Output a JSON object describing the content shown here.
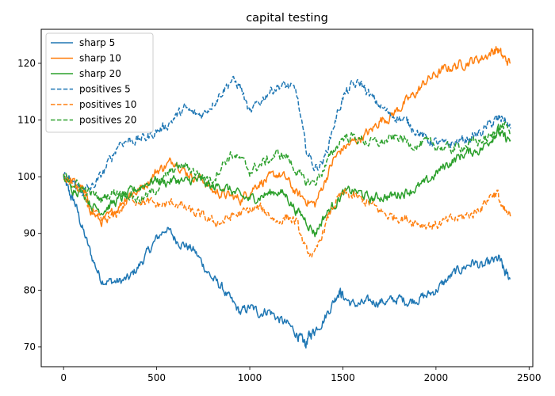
{
  "chart_data": {
    "type": "line",
    "title": "capital testing",
    "xlabel": "",
    "ylabel": "",
    "xlim": [
      -120,
      2520
    ],
    "ylim": [
      66.5,
      126.0
    ],
    "xticks": [
      0,
      500,
      1000,
      1500,
      2000,
      2500
    ],
    "yticks": [
      70,
      80,
      90,
      100,
      110,
      120
    ],
    "grid": false,
    "legend_position": "top-left",
    "series": [
      {
        "name": "sharp 5",
        "color": "#1f77b4",
        "dash": "solid",
        "points": [
          [
            0,
            100
          ],
          [
            30,
            97
          ],
          [
            60,
            95.5
          ],
          [
            100,
            91
          ],
          [
            150,
            86
          ],
          [
            200,
            82
          ],
          [
            250,
            81.5
          ],
          [
            300,
            81.5
          ],
          [
            350,
            82
          ],
          [
            400,
            84
          ],
          [
            450,
            86.5
          ],
          [
            500,
            89
          ],
          [
            550,
            91
          ],
          [
            600,
            89
          ],
          [
            650,
            88
          ],
          [
            700,
            87
          ],
          [
            750,
            84.5
          ],
          [
            800,
            82
          ],
          [
            850,
            80.5
          ],
          [
            900,
            78
          ],
          [
            950,
            76
          ],
          [
            1000,
            77
          ],
          [
            1050,
            76
          ],
          [
            1100,
            76.5
          ],
          [
            1150,
            75
          ],
          [
            1200,
            74
          ],
          [
            1250,
            72.5
          ],
          [
            1280,
            71
          ],
          [
            1300,
            70.5
          ],
          [
            1320,
            72
          ],
          [
            1350,
            73
          ],
          [
            1400,
            75
          ],
          [
            1450,
            78
          ],
          [
            1480,
            80
          ],
          [
            1500,
            79
          ],
          [
            1550,
            77.5
          ],
          [
            1600,
            77.5
          ],
          [
            1650,
            78
          ],
          [
            1700,
            78
          ],
          [
            1750,
            78
          ],
          [
            1800,
            78.5
          ],
          [
            1850,
            78
          ],
          [
            1900,
            78.5
          ],
          [
            1950,
            79
          ],
          [
            2000,
            80
          ],
          [
            2050,
            81.5
          ],
          [
            2100,
            83
          ],
          [
            2150,
            84
          ],
          [
            2200,
            85
          ],
          [
            2250,
            84
          ],
          [
            2300,
            85
          ],
          [
            2340,
            85.5
          ],
          [
            2370,
            83
          ],
          [
            2400,
            82
          ]
        ]
      },
      {
        "name": "sharp 10",
        "color": "#ff7f0e",
        "dash": "solid",
        "points": [
          [
            0,
            100
          ],
          [
            50,
            99
          ],
          [
            100,
            98
          ],
          [
            150,
            94
          ],
          [
            200,
            92
          ],
          [
            250,
            93
          ],
          [
            300,
            95
          ],
          [
            350,
            97
          ],
          [
            400,
            97.5
          ],
          [
            450,
            99
          ],
          [
            500,
            101
          ],
          [
            550,
            102
          ],
          [
            600,
            103
          ],
          [
            650,
            101
          ],
          [
            700,
            100
          ],
          [
            750,
            99.5
          ],
          [
            800,
            97.5
          ],
          [
            850,
            97
          ],
          [
            900,
            96.5
          ],
          [
            950,
            96
          ],
          [
            1000,
            97.5
          ],
          [
            1050,
            99
          ],
          [
            1100,
            99.5
          ],
          [
            1150,
            100.5
          ],
          [
            1200,
            99.5
          ],
          [
            1250,
            97
          ],
          [
            1300,
            96
          ],
          [
            1350,
            95
          ],
          [
            1400,
            99
          ],
          [
            1450,
            103
          ],
          [
            1500,
            105
          ],
          [
            1550,
            106
          ],
          [
            1600,
            107
          ],
          [
            1650,
            108
          ],
          [
            1700,
            110
          ],
          [
            1750,
            110.5
          ],
          [
            1800,
            112
          ],
          [
            1850,
            113.5
          ],
          [
            1900,
            115
          ],
          [
            1950,
            117
          ],
          [
            2000,
            118
          ],
          [
            2050,
            119
          ],
          [
            2100,
            119.5
          ],
          [
            2150,
            120
          ],
          [
            2200,
            120.5
          ],
          [
            2250,
            121
          ],
          [
            2300,
            122
          ],
          [
            2330,
            122.5
          ],
          [
            2360,
            121
          ],
          [
            2400,
            120
          ]
        ]
      },
      {
        "name": "sharp 20",
        "color": "#2ca02c",
        "dash": "solid",
        "points": [
          [
            0,
            100
          ],
          [
            50,
            98
          ],
          [
            100,
            97.5
          ],
          [
            150,
            95
          ],
          [
            200,
            94
          ],
          [
            250,
            95
          ],
          [
            300,
            96
          ],
          [
            350,
            97
          ],
          [
            400,
            98
          ],
          [
            450,
            99
          ],
          [
            500,
            99.5
          ],
          [
            550,
            99
          ],
          [
            600,
            99.5
          ],
          [
            650,
            99
          ],
          [
            700,
            99.5
          ],
          [
            750,
            99
          ],
          [
            800,
            98
          ],
          [
            850,
            98.5
          ],
          [
            900,
            97.5
          ],
          [
            950,
            96.5
          ],
          [
            1000,
            96
          ],
          [
            1050,
            96.5
          ],
          [
            1100,
            97
          ],
          [
            1150,
            97.5
          ],
          [
            1200,
            96.5
          ],
          [
            1250,
            94
          ],
          [
            1300,
            92.5
          ],
          [
            1350,
            90
          ],
          [
            1400,
            93
          ],
          [
            1450,
            95
          ],
          [
            1500,
            97
          ],
          [
            1550,
            97.5
          ],
          [
            1600,
            97
          ],
          [
            1650,
            96
          ],
          [
            1700,
            96.5
          ],
          [
            1750,
            96.5
          ],
          [
            1800,
            97
          ],
          [
            1850,
            97.5
          ],
          [
            1900,
            98
          ],
          [
            1950,
            99
          ],
          [
            2000,
            100.5
          ],
          [
            2050,
            102
          ],
          [
            2100,
            103
          ],
          [
            2150,
            104
          ],
          [
            2200,
            104.5
          ],
          [
            2250,
            105
          ],
          [
            2300,
            107
          ],
          [
            2330,
            108
          ],
          [
            2360,
            107
          ],
          [
            2400,
            106.5
          ]
        ]
      },
      {
        "name": "positives 5",
        "color": "#1f77b4",
        "dash": "dashed",
        "points": [
          [
            0,
            100
          ],
          [
            50,
            99
          ],
          [
            100,
            97.5
          ],
          [
            150,
            98
          ],
          [
            200,
            100
          ],
          [
            250,
            103
          ],
          [
            300,
            106
          ],
          [
            350,
            106.5
          ],
          [
            400,
            106.5
          ],
          [
            450,
            107
          ],
          [
            500,
            108
          ],
          [
            550,
            109
          ],
          [
            600,
            110.5
          ],
          [
            650,
            112
          ],
          [
            700,
            111
          ],
          [
            750,
            111
          ],
          [
            800,
            113
          ],
          [
            850,
            115
          ],
          [
            900,
            117
          ],
          [
            950,
            116
          ],
          [
            1000,
            111
          ],
          [
            1050,
            113
          ],
          [
            1100,
            115
          ],
          [
            1150,
            116
          ],
          [
            1200,
            116
          ],
          [
            1250,
            115
          ],
          [
            1300,
            105
          ],
          [
            1350,
            101.5
          ],
          [
            1400,
            103
          ],
          [
            1450,
            109
          ],
          [
            1500,
            114
          ],
          [
            1550,
            116
          ],
          [
            1600,
            116.5
          ],
          [
            1650,
            114
          ],
          [
            1700,
            112.5
          ],
          [
            1750,
            111
          ],
          [
            1800,
            110.5
          ],
          [
            1850,
            109.5
          ],
          [
            1900,
            108
          ],
          [
            1950,
            106.5
          ],
          [
            2000,
            106
          ],
          [
            2050,
            105.5
          ],
          [
            2100,
            106
          ],
          [
            2150,
            106.5
          ],
          [
            2200,
            107
          ],
          [
            2250,
            108
          ],
          [
            2300,
            109.5
          ],
          [
            2330,
            110
          ],
          [
            2360,
            110.5
          ],
          [
            2400,
            108.5
          ]
        ]
      },
      {
        "name": "positives 10",
        "color": "#ff7f0e",
        "dash": "dashed",
        "points": [
          [
            0,
            100
          ],
          [
            50,
            98.5
          ],
          [
            100,
            97
          ],
          [
            150,
            94
          ],
          [
            200,
            92
          ],
          [
            250,
            92.5
          ],
          [
            300,
            94
          ],
          [
            350,
            96
          ],
          [
            400,
            96
          ],
          [
            450,
            95.5
          ],
          [
            500,
            95
          ],
          [
            550,
            95
          ],
          [
            600,
            95.5
          ],
          [
            650,
            94.5
          ],
          [
            700,
            93.5
          ],
          [
            750,
            93
          ],
          [
            800,
            92
          ],
          [
            850,
            92
          ],
          [
            900,
            93
          ],
          [
            950,
            93.5
          ],
          [
            1000,
            94
          ],
          [
            1050,
            94.5
          ],
          [
            1100,
            93.5
          ],
          [
            1150,
            92
          ],
          [
            1200,
            93
          ],
          [
            1250,
            92
          ],
          [
            1300,
            87
          ],
          [
            1350,
            86
          ],
          [
            1400,
            91
          ],
          [
            1450,
            95
          ],
          [
            1500,
            97
          ],
          [
            1550,
            96.5
          ],
          [
            1600,
            96
          ],
          [
            1650,
            95
          ],
          [
            1700,
            94
          ],
          [
            1750,
            93
          ],
          [
            1800,
            93
          ],
          [
            1850,
            92.5
          ],
          [
            1900,
            92
          ],
          [
            1950,
            91.5
          ],
          [
            2000,
            91.5
          ],
          [
            2050,
            92
          ],
          [
            2100,
            92.5
          ],
          [
            2150,
            93
          ],
          [
            2200,
            93.5
          ],
          [
            2250,
            95
          ],
          [
            2300,
            97
          ],
          [
            2330,
            97
          ],
          [
            2360,
            94
          ],
          [
            2400,
            93
          ]
        ]
      },
      {
        "name": "positives 20",
        "color": "#2ca02c",
        "dash": "dashed",
        "points": [
          [
            0,
            100
          ],
          [
            50,
            99
          ],
          [
            100,
            98
          ],
          [
            150,
            97
          ],
          [
            200,
            96
          ],
          [
            250,
            97
          ],
          [
            300,
            97.5
          ],
          [
            350,
            97
          ],
          [
            400,
            96
          ],
          [
            450,
            96.5
          ],
          [
            500,
            98
          ],
          [
            550,
            100
          ],
          [
            600,
            101.5
          ],
          [
            650,
            102
          ],
          [
            700,
            101
          ],
          [
            750,
            100
          ],
          [
            800,
            99.5
          ],
          [
            850,
            102
          ],
          [
            900,
            104
          ],
          [
            950,
            103
          ],
          [
            1000,
            101
          ],
          [
            1050,
            102
          ],
          [
            1100,
            103
          ],
          [
            1150,
            104
          ],
          [
            1200,
            103.5
          ],
          [
            1250,
            101
          ],
          [
            1300,
            99
          ],
          [
            1350,
            99
          ],
          [
            1400,
            101.5
          ],
          [
            1450,
            104.5
          ],
          [
            1500,
            107
          ],
          [
            1550,
            107
          ],
          [
            1600,
            106.5
          ],
          [
            1650,
            106
          ],
          [
            1700,
            106
          ],
          [
            1750,
            106.5
          ],
          [
            1800,
            107
          ],
          [
            1850,
            106
          ],
          [
            1900,
            105.5
          ],
          [
            1950,
            106
          ],
          [
            2000,
            105.5
          ],
          [
            2050,
            105
          ],
          [
            2100,
            105
          ],
          [
            2150,
            105.5
          ],
          [
            2200,
            106
          ],
          [
            2250,
            106.5
          ],
          [
            2300,
            107
          ],
          [
            2330,
            108.5
          ],
          [
            2360,
            109
          ],
          [
            2400,
            108
          ]
        ]
      }
    ]
  }
}
